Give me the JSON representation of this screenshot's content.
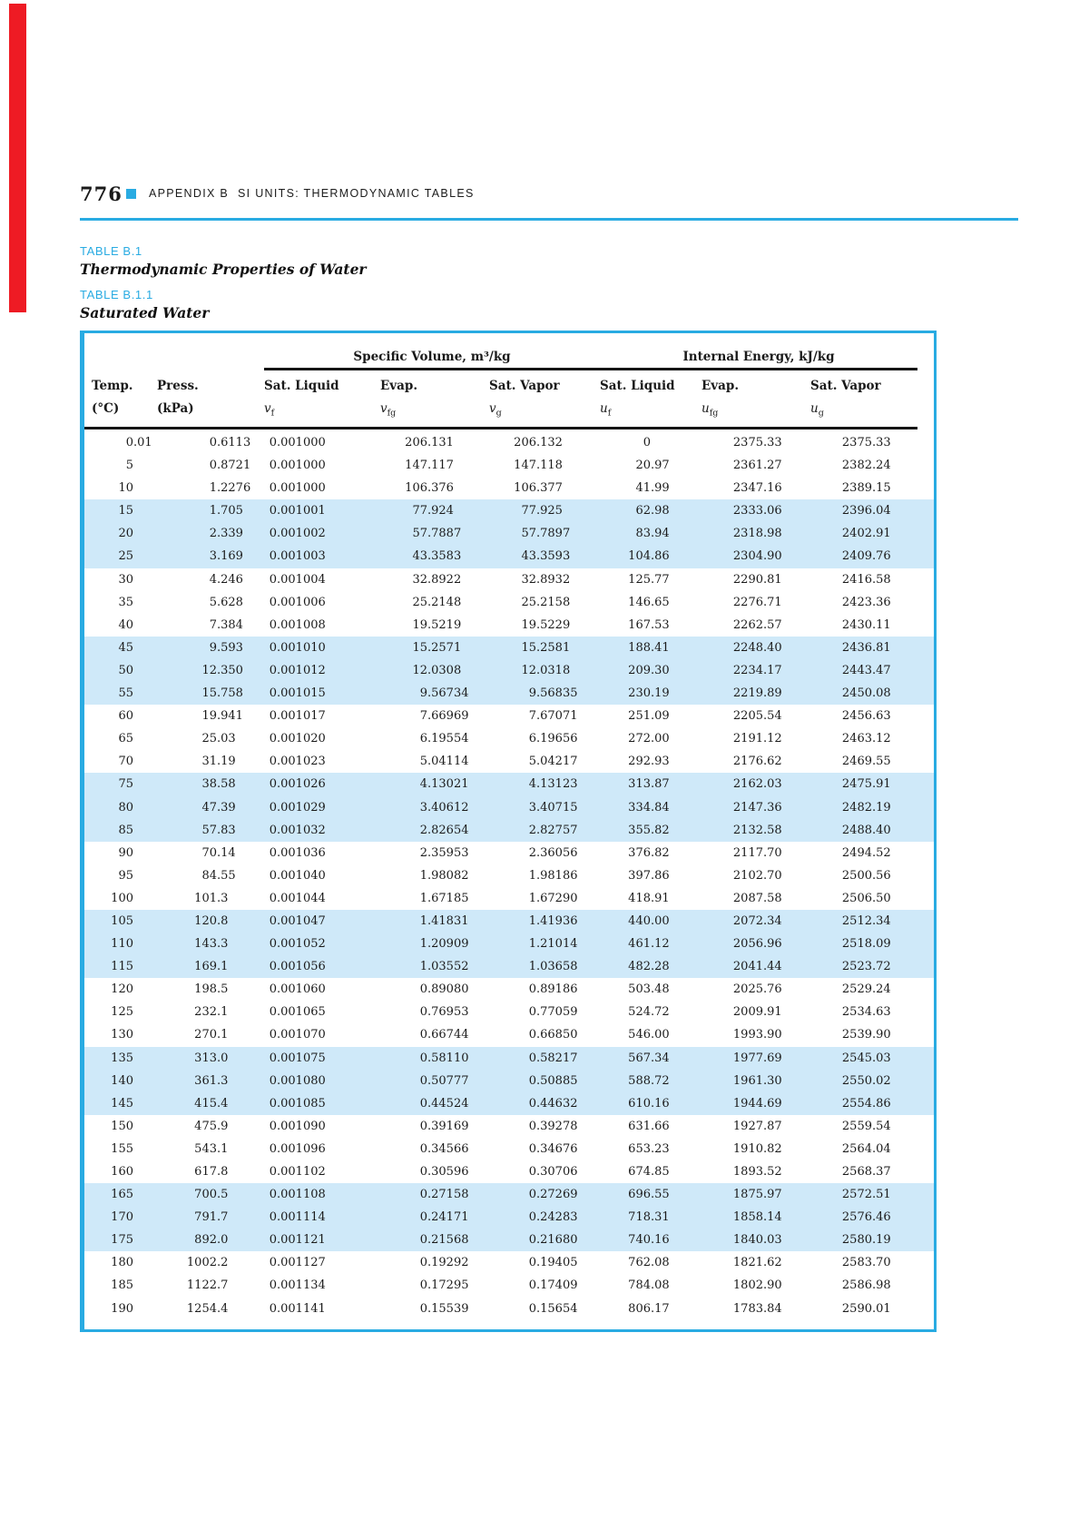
{
  "colors": {
    "accent": "#29abe2",
    "stripe": "#cfe9f9",
    "red_bar": "#ee1b24",
    "rule_black": "#151515"
  },
  "page_header": {
    "page_number": "776",
    "square_icon": "blue-square-bullet",
    "title_part1": "APPENDIX B",
    "title_part2": "SI UNITS: THERMODYNAMIC TABLES"
  },
  "titles": {
    "table_b1_label": "TABLE B.1",
    "table_b1_caption": "Thermodynamic Properties of Water",
    "table_b11_label": "TABLE B.1.1",
    "table_b11_caption": "Saturated Water"
  },
  "table": {
    "group_headers": [
      {
        "label": "Specific Volume, m³/kg"
      },
      {
        "label": "Internal Energy, kJ/kg"
      }
    ],
    "columns": [
      {
        "header": "Temp.",
        "unit": "(°C)"
      },
      {
        "header": "Press.",
        "unit": "(kPa)"
      },
      {
        "header": "Sat. Liquid",
        "sym": "v",
        "sub": "f"
      },
      {
        "header": "Evap.",
        "sym": "v",
        "sub": "fg"
      },
      {
        "header": "Sat. Vapor",
        "sym": "v",
        "sub": "g"
      },
      {
        "header": "Sat. Liquid",
        "sym": "u",
        "sub": "f"
      },
      {
        "header": "Evap.",
        "sym": "u",
        "sub": "fg"
      },
      {
        "header": "Sat. Vapor",
        "sym": "u",
        "sub": "g"
      }
    ],
    "rows": [
      [
        "0.01",
        "0.6113",
        "0.001000",
        "206.131",
        "206.132",
        "0",
        "2375.33",
        "2375.33"
      ],
      [
        "5",
        "0.8721",
        "0.001000",
        "147.117",
        "147.118",
        "20.97",
        "2361.27",
        "2382.24"
      ],
      [
        "10",
        "1.2276",
        "0.001000",
        "106.376",
        "106.377",
        "41.99",
        "2347.16",
        "2389.15"
      ],
      [
        "15",
        "1.705",
        "0.001001",
        "77.924",
        "77.925",
        "62.98",
        "2333.06",
        "2396.04"
      ],
      [
        "20",
        "2.339",
        "0.001002",
        "57.7887",
        "57.7897",
        "83.94",
        "2318.98",
        "2402.91"
      ],
      [
        "25",
        "3.169",
        "0.001003",
        "43.3583",
        "43.3593",
        "104.86",
        "2304.90",
        "2409.76"
      ],
      [
        "30",
        "4.246",
        "0.001004",
        "32.8922",
        "32.8932",
        "125.77",
        "2290.81",
        "2416.58"
      ],
      [
        "35",
        "5.628",
        "0.001006",
        "25.2148",
        "25.2158",
        "146.65",
        "2276.71",
        "2423.36"
      ],
      [
        "40",
        "7.384",
        "0.001008",
        "19.5219",
        "19.5229",
        "167.53",
        "2262.57",
        "2430.11"
      ],
      [
        "45",
        "9.593",
        "0.001010",
        "15.2571",
        "15.2581",
        "188.41",
        "2248.40",
        "2436.81"
      ],
      [
        "50",
        "12.350",
        "0.001012",
        "12.0308",
        "12.0318",
        "209.30",
        "2234.17",
        "2443.47"
      ],
      [
        "55",
        "15.758",
        "0.001015",
        "9.56734",
        "9.56835",
        "230.19",
        "2219.89",
        "2450.08"
      ],
      [
        "60",
        "19.941",
        "0.001017",
        "7.66969",
        "7.67071",
        "251.09",
        "2205.54",
        "2456.63"
      ],
      [
        "65",
        "25.03",
        "0.001020",
        "6.19554",
        "6.19656",
        "272.00",
        "2191.12",
        "2463.12"
      ],
      [
        "70",
        "31.19",
        "0.001023",
        "5.04114",
        "5.04217",
        "292.93",
        "2176.62",
        "2469.55"
      ],
      [
        "75",
        "38.58",
        "0.001026",
        "4.13021",
        "4.13123",
        "313.87",
        "2162.03",
        "2475.91"
      ],
      [
        "80",
        "47.39",
        "0.001029",
        "3.40612",
        "3.40715",
        "334.84",
        "2147.36",
        "2482.19"
      ],
      [
        "85",
        "57.83",
        "0.001032",
        "2.82654",
        "2.82757",
        "355.82",
        "2132.58",
        "2488.40"
      ],
      [
        "90",
        "70.14",
        "0.001036",
        "2.35953",
        "2.36056",
        "376.82",
        "2117.70",
        "2494.52"
      ],
      [
        "95",
        "84.55",
        "0.001040",
        "1.98082",
        "1.98186",
        "397.86",
        "2102.70",
        "2500.56"
      ],
      [
        "100",
        "101.3",
        "0.001044",
        "1.67185",
        "1.67290",
        "418.91",
        "2087.58",
        "2506.50"
      ],
      [
        "105",
        "120.8",
        "0.001047",
        "1.41831",
        "1.41936",
        "440.00",
        "2072.34",
        "2512.34"
      ],
      [
        "110",
        "143.3",
        "0.001052",
        "1.20909",
        "1.21014",
        "461.12",
        "2056.96",
        "2518.09"
      ],
      [
        "115",
        "169.1",
        "0.001056",
        "1.03552",
        "1.03658",
        "482.28",
        "2041.44",
        "2523.72"
      ],
      [
        "120",
        "198.5",
        "0.001060",
        "0.89080",
        "0.89186",
        "503.48",
        "2025.76",
        "2529.24"
      ],
      [
        "125",
        "232.1",
        "0.001065",
        "0.76953",
        "0.77059",
        "524.72",
        "2009.91",
        "2534.63"
      ],
      [
        "130",
        "270.1",
        "0.001070",
        "0.66744",
        "0.66850",
        "546.00",
        "1993.90",
        "2539.90"
      ],
      [
        "135",
        "313.0",
        "0.001075",
        "0.58110",
        "0.58217",
        "567.34",
        "1977.69",
        "2545.03"
      ],
      [
        "140",
        "361.3",
        "0.001080",
        "0.50777",
        "0.50885",
        "588.72",
        "1961.30",
        "2550.02"
      ],
      [
        "145",
        "415.4",
        "0.001085",
        "0.44524",
        "0.44632",
        "610.16",
        "1944.69",
        "2554.86"
      ],
      [
        "150",
        "475.9",
        "0.001090",
        "0.39169",
        "0.39278",
        "631.66",
        "1927.87",
        "2559.54"
      ],
      [
        "155",
        "543.1",
        "0.001096",
        "0.34566",
        "0.34676",
        "653.23",
        "1910.82",
        "2564.04"
      ],
      [
        "160",
        "617.8",
        "0.001102",
        "0.30596",
        "0.30706",
        "674.85",
        "1893.52",
        "2568.37"
      ],
      [
        "165",
        "700.5",
        "0.001108",
        "0.27158",
        "0.27269",
        "696.55",
        "1875.97",
        "2572.51"
      ],
      [
        "170",
        "791.7",
        "0.001114",
        "0.24171",
        "0.24283",
        "718.31",
        "1858.14",
        "2576.46"
      ],
      [
        "175",
        "892.0",
        "0.001121",
        "0.21568",
        "0.21680",
        "740.16",
        "1840.03",
        "2580.19"
      ],
      [
        "180",
        "1002.2",
        "0.001127",
        "0.19292",
        "0.19405",
        "762.08",
        "1821.62",
        "2583.70"
      ],
      [
        "185",
        "1122.7",
        "0.001134",
        "0.17295",
        "0.17409",
        "784.08",
        "1802.90",
        "2586.98"
      ],
      [
        "190",
        "1254.4",
        "0.001141",
        "0.15539",
        "0.15654",
        "806.17",
        "1783.84",
        "2590.01"
      ]
    ]
  }
}
